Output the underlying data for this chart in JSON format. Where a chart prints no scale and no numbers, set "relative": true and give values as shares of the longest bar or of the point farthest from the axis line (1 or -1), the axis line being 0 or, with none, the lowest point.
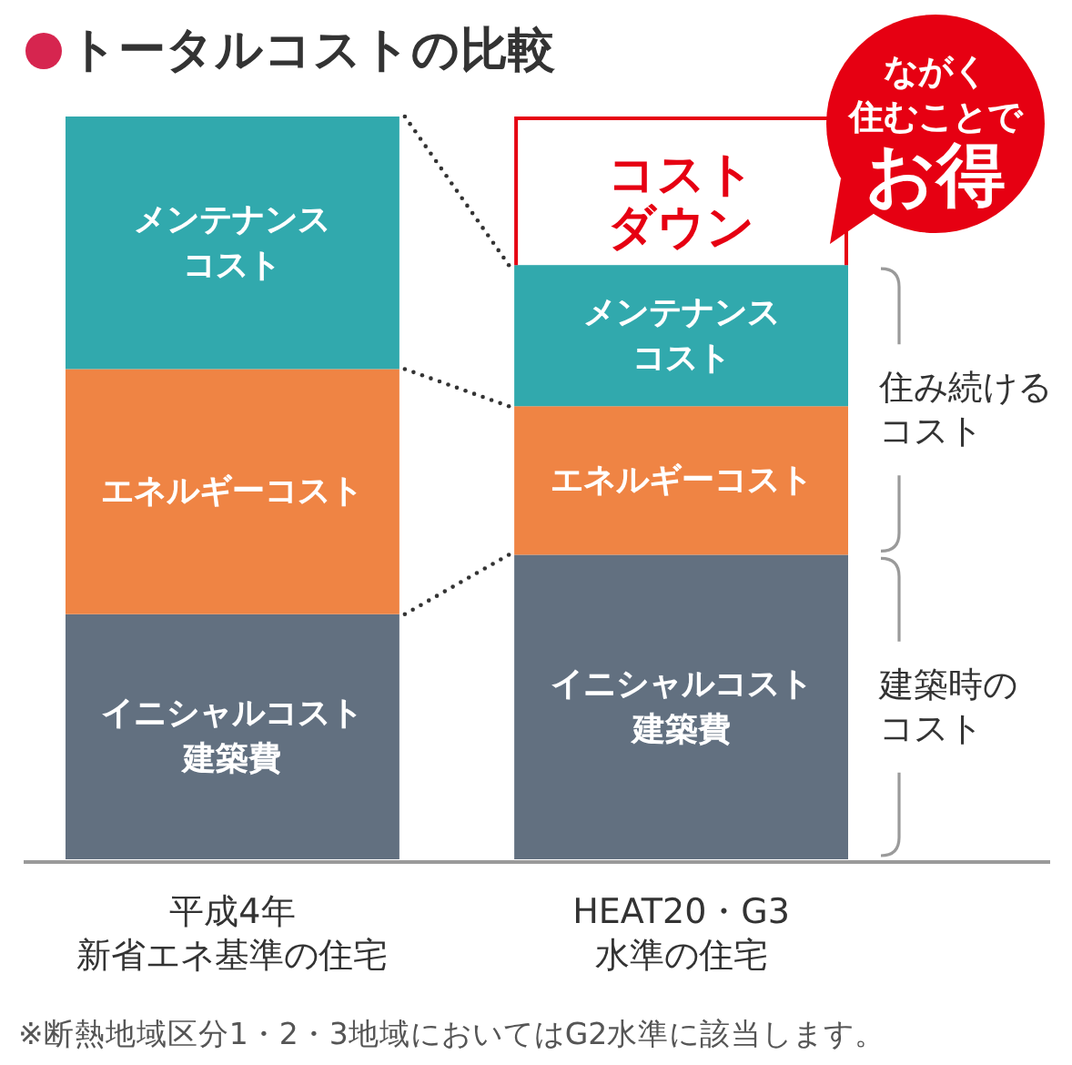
{
  "chart_data": {
    "type": "bar",
    "stacked": true,
    "relative": true,
    "title": "トータルコストの比較",
    "categories": [
      "平成4年新省エネ基準の住宅",
      "HEAT20・G3水準の住宅"
    ],
    "series": [
      {
        "name": "イニシャルコスト建築費",
        "color": "#627080",
        "values": [
          0.33,
          0.41
        ]
      },
      {
        "name": "エネルギーコスト",
        "color": "#ef8444",
        "values": [
          0.33,
          0.2
        ]
      },
      {
        "name": "メンテナンスコスト",
        "color": "#31a9ad",
        "values": [
          0.34,
          0.19
        ]
      }
    ],
    "annotations": [
      "コストダウン",
      "ながく住むことで",
      "お得",
      "住み続けるコスト",
      "建築時のコスト",
      "※断熱地域区分1・2・3地域においてはG2水準に該当します。"
    ]
  }
}
